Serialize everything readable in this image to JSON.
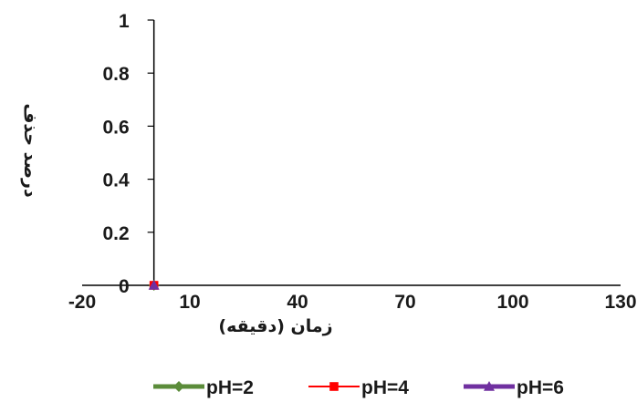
{
  "chart_data": {
    "type": "scatter",
    "xlabel": "زمان (دقیقه)",
    "ylabel": "درصد حذف",
    "xlim": [
      -20,
      130
    ],
    "ylim": [
      0,
      1
    ],
    "x_ticks": [
      "-20",
      "10",
      "40",
      "70",
      "100",
      "130"
    ],
    "y_ticks": [
      "0",
      "0.2",
      "0.4",
      "0.6",
      "0.8",
      "1"
    ],
    "grid": false,
    "legend": "bottom",
    "series": [
      {
        "name": "pH=2",
        "color": "#5b8c3a",
        "marker": "diamond",
        "x": [
          0
        ],
        "y": [
          0
        ]
      },
      {
        "name": "pH=4",
        "color": "#ff0000",
        "marker": "square",
        "x": [
          0
        ],
        "y": [
          0
        ]
      },
      {
        "name": "pH=6",
        "color": "#7030a0",
        "marker": "triangle",
        "x": [
          0
        ],
        "y": [
          0
        ]
      }
    ]
  }
}
